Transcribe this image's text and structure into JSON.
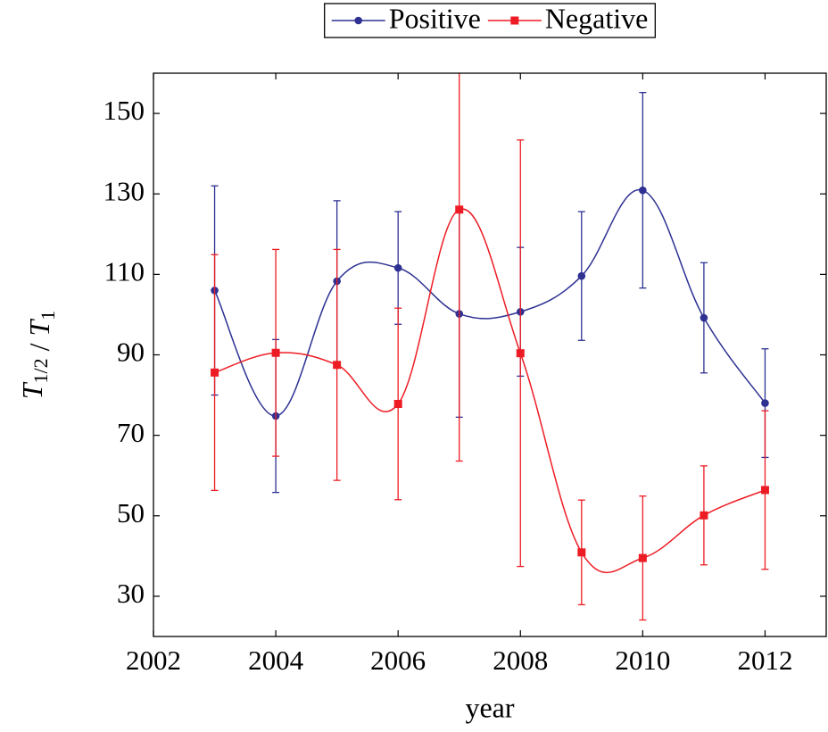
{
  "chart_data": {
    "type": "line",
    "xlabel": "year",
    "ylabel": [
      {
        "text": "T",
        "sub": "1/2"
      },
      {
        "text": " / "
      },
      {
        "text": "T",
        "sub": "1"
      }
    ],
    "x": [
      2003,
      2004,
      2005,
      2006,
      2007,
      2008,
      2009,
      2010,
      2011,
      2012
    ],
    "series": [
      {
        "name": "Positive",
        "color": "#2e3192",
        "marker": "circle",
        "values": [
          106.0,
          74.8,
          108.3,
          111.6,
          100.2,
          100.7,
          109.6,
          130.9,
          99.2,
          78.0
        ],
        "errors": [
          26.0,
          19.0,
          20.0,
          14.0,
          25.7,
          16.0,
          16.0,
          24.3,
          13.7,
          13.5
        ]
      },
      {
        "name": "Negative",
        "color": "#ed1c24",
        "marker": "square",
        "values": [
          85.6,
          90.5,
          87.5,
          77.8,
          126.1,
          90.4,
          40.9,
          39.5,
          50.1,
          56.4
        ],
        "errors": [
          29.3,
          25.7,
          28.7,
          23.8,
          62.5,
          53.0,
          13.0,
          15.4,
          12.3,
          19.7
        ]
      }
    ],
    "xlim": [
      2002,
      2013
    ],
    "ylim": [
      20,
      160
    ],
    "xticks": [
      2002,
      2004,
      2006,
      2008,
      2010,
      2012
    ],
    "yticks": [
      30,
      50,
      70,
      90,
      110,
      130,
      150
    ],
    "smooth": true,
    "legend": "north"
  }
}
